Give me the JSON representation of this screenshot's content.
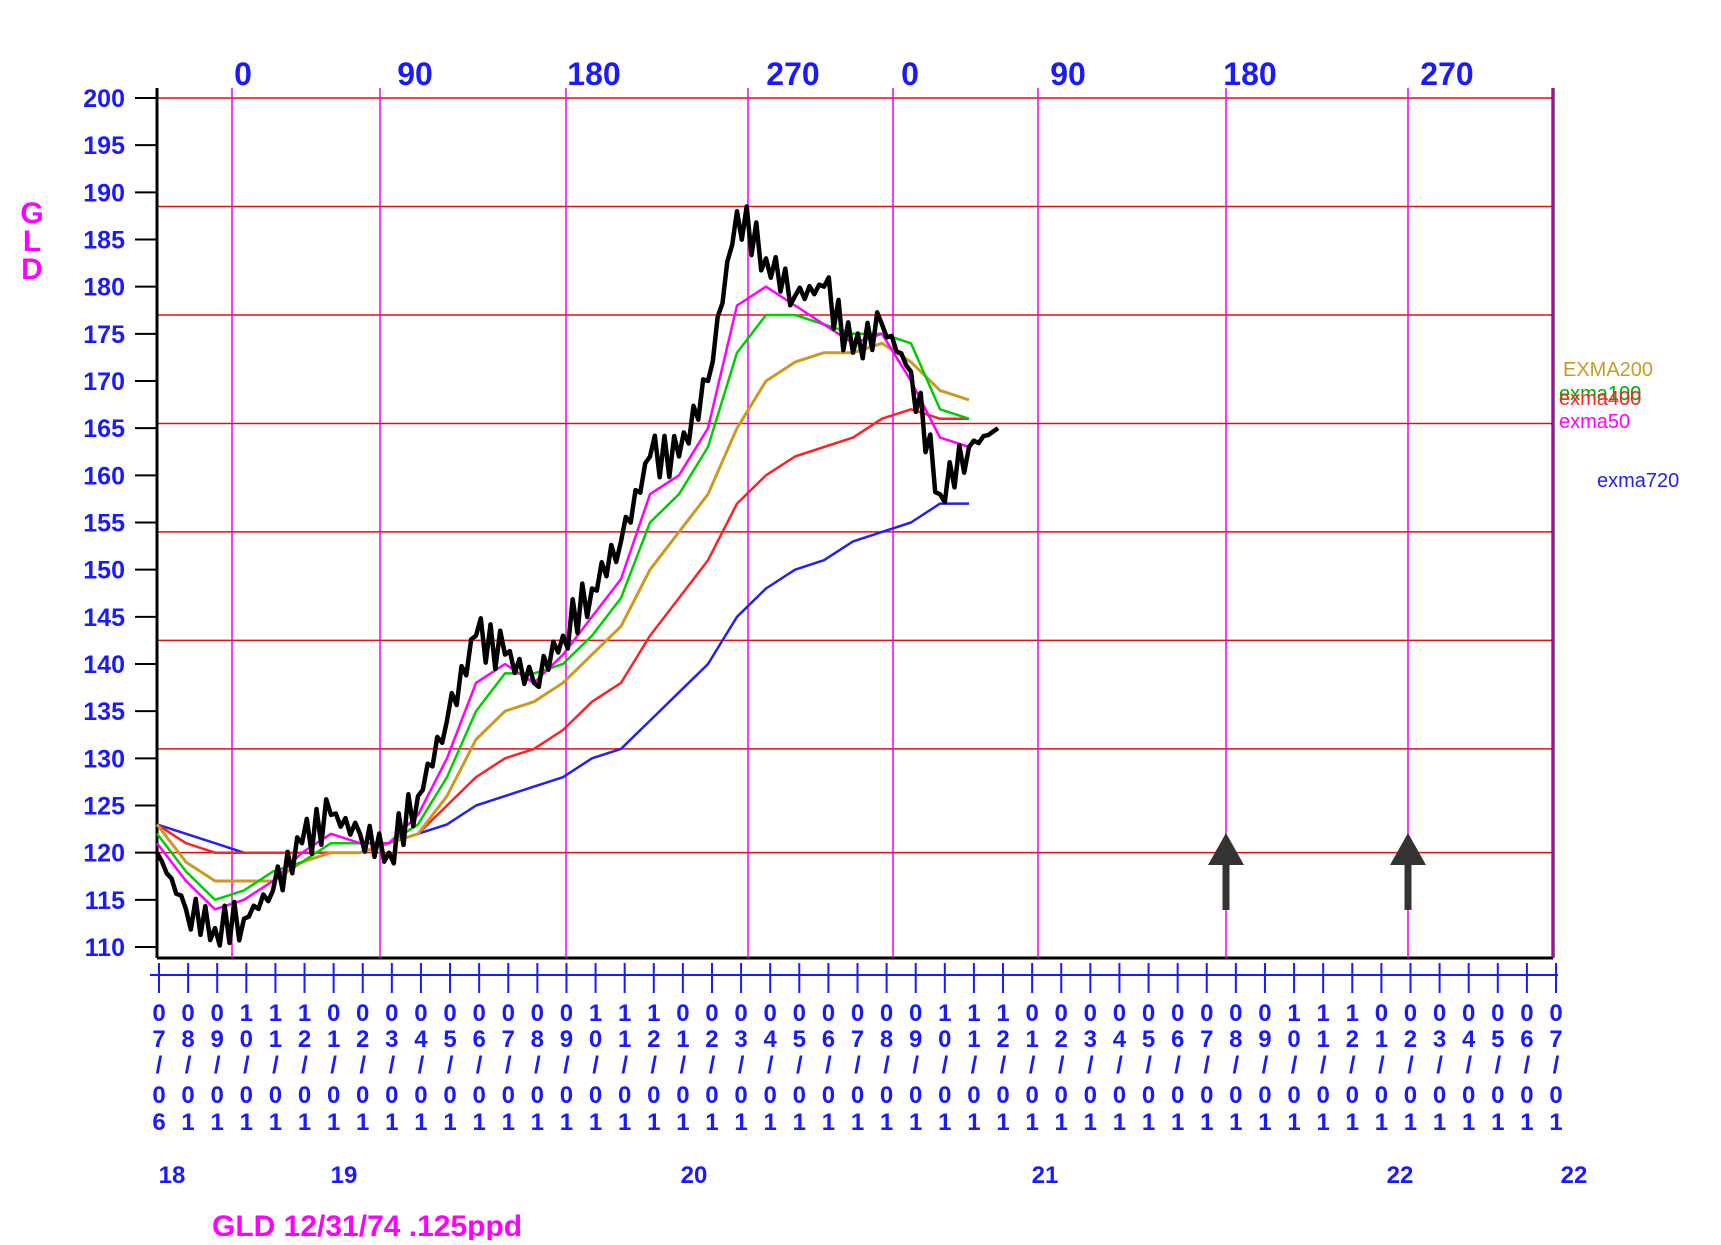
{
  "chart_data": {
    "type": "line",
    "y_axis_letters": [
      "G",
      "L",
      "D"
    ],
    "footer": "GLD 12/31/74  .125ppd",
    "ylim": [
      110,
      200
    ],
    "y_ticks": [
      "200",
      "195",
      "190",
      "185",
      "180",
      "175",
      "170",
      "165",
      "160",
      "155",
      "150",
      "145",
      "140",
      "135",
      "130",
      "125",
      "120",
      "115",
      "110"
    ],
    "degree_labels": [
      "0",
      "90",
      "180",
      "270",
      "0",
      "90",
      "180",
      "270"
    ],
    "x_month_ticks": [
      [
        "0",
        "7",
        "/",
        "0",
        "6"
      ],
      [
        "0",
        "8",
        "/",
        "0",
        "1"
      ],
      [
        "0",
        "9",
        "/",
        "0",
        "1"
      ],
      [
        "1",
        "0",
        "/",
        "0",
        "1"
      ],
      [
        "1",
        "1",
        "/",
        "0",
        "1"
      ],
      [
        "1",
        "2",
        "/",
        "0",
        "1"
      ],
      [
        "0",
        "1",
        "/",
        "0",
        "1"
      ],
      [
        "0",
        "2",
        "/",
        "0",
        "1"
      ],
      [
        "0",
        "3",
        "/",
        "0",
        "1"
      ],
      [
        "0",
        "4",
        "/",
        "0",
        "1"
      ],
      [
        "0",
        "5",
        "/",
        "0",
        "1"
      ],
      [
        "0",
        "6",
        "/",
        "0",
        "1"
      ],
      [
        "0",
        "7",
        "/",
        "0",
        "1"
      ],
      [
        "0",
        "8",
        "/",
        "0",
        "1"
      ],
      [
        "0",
        "9",
        "/",
        "0",
        "1"
      ],
      [
        "1",
        "0",
        "/",
        "0",
        "1"
      ],
      [
        "1",
        "1",
        "/",
        "0",
        "1"
      ],
      [
        "1",
        "2",
        "/",
        "0",
        "1"
      ],
      [
        "0",
        "1",
        "/",
        "0",
        "1"
      ],
      [
        "0",
        "2",
        "/",
        "0",
        "1"
      ],
      [
        "0",
        "3",
        "/",
        "0",
        "1"
      ],
      [
        "0",
        "4",
        "/",
        "0",
        "1"
      ],
      [
        "0",
        "5",
        "/",
        "0",
        "1"
      ],
      [
        "0",
        "6",
        "/",
        "0",
        "1"
      ],
      [
        "0",
        "7",
        "/",
        "0",
        "1"
      ],
      [
        "0",
        "8",
        "/",
        "0",
        "1"
      ],
      [
        "0",
        "9",
        "/",
        "0",
        "1"
      ],
      [
        "1",
        "0",
        "/",
        "0",
        "1"
      ],
      [
        "1",
        "1",
        "/",
        "0",
        "1"
      ],
      [
        "1",
        "2",
        "/",
        "0",
        "1"
      ],
      [
        "0",
        "1",
        "/",
        "0",
        "1"
      ],
      [
        "0",
        "2",
        "/",
        "0",
        "1"
      ],
      [
        "0",
        "3",
        "/",
        "0",
        "1"
      ],
      [
        "0",
        "4",
        "/",
        "0",
        "1"
      ],
      [
        "0",
        "5",
        "/",
        "0",
        "1"
      ],
      [
        "0",
        "6",
        "/",
        "0",
        "1"
      ],
      [
        "0",
        "7",
        "/",
        "0",
        "1"
      ],
      [
        "0",
        "8",
        "/",
        "0",
        "1"
      ],
      [
        "0",
        "9",
        "/",
        "0",
        "1"
      ],
      [
        "1",
        "0",
        "/",
        "0",
        "1"
      ],
      [
        "1",
        "1",
        "/",
        "0",
        "1"
      ],
      [
        "1",
        "2",
        "/",
        "0",
        "1"
      ],
      [
        "0",
        "1",
        "/",
        "0",
        "1"
      ],
      [
        "0",
        "2",
        "/",
        "0",
        "1"
      ],
      [
        "0",
        "3",
        "/",
        "0",
        "1"
      ],
      [
        "0",
        "4",
        "/",
        "0",
        "1"
      ],
      [
        "0",
        "5",
        "/",
        "0",
        "1"
      ],
      [
        "0",
        "6",
        "/",
        "0",
        "1"
      ],
      [
        "0",
        "7",
        "/",
        "0",
        "1"
      ]
    ],
    "year_labels": [
      "18",
      "19",
      "20",
      "21",
      "22",
      "22"
    ],
    "legend": [
      "EXMA200",
      "exma100",
      "exma400",
      "exma50",
      "exma720"
    ],
    "horizontal_levels": [
      200,
      188.5,
      177,
      165.5,
      154,
      142.5,
      131,
      120
    ],
    "arrows_at_months": [
      25,
      31.3
    ],
    "x": [
      0,
      1,
      2,
      3,
      4,
      5,
      6,
      7,
      8,
      9,
      10,
      11,
      12,
      13,
      14,
      15,
      16,
      17,
      18,
      19,
      20,
      21,
      22,
      23,
      24,
      25,
      26,
      27,
      28,
      29,
      30,
      31,
      32,
      33,
      34
    ],
    "series": [
      {
        "name": "GLD",
        "color": "#000000",
        "values": [
          120,
          114,
          112,
          113,
          116,
          121,
          124,
          122,
          120,
          126,
          134,
          143,
          141,
          138,
          143,
          148,
          153,
          162,
          162,
          170,
          188,
          183,
          179,
          180,
          173,
          176,
          171,
          158,
          163,
          165,
          null,
          null,
          null,
          null,
          null
        ]
      },
      {
        "name": "exma50",
        "color": "#ff00ff",
        "values": [
          121,
          117,
          114,
          115,
          117,
          120,
          122,
          121,
          121,
          124,
          130,
          138,
          140,
          138,
          141,
          145,
          149,
          158,
          160,
          165,
          178,
          180,
          178,
          176,
          174,
          175,
          170,
          164,
          163,
          null,
          null,
          null,
          null,
          null,
          null
        ]
      },
      {
        "name": "exma100",
        "color": "#00cc00",
        "values": [
          122,
          118,
          115,
          116,
          118,
          119,
          121,
          121,
          121,
          123,
          128,
          135,
          139,
          139,
          140,
          143,
          147,
          155,
          158,
          163,
          173,
          177,
          177,
          176,
          175,
          175,
          174,
          167,
          166,
          null,
          null,
          null,
          null,
          null,
          null
        ]
      },
      {
        "name": "EXMA200",
        "color": "#cc9922",
        "values": [
          123,
          119,
          117,
          117,
          117,
          119,
          120,
          120,
          121,
          122,
          126,
          132,
          135,
          136,
          138,
          141,
          144,
          150,
          154,
          158,
          165,
          170,
          172,
          173,
          173,
          174,
          172,
          169,
          168,
          null,
          null,
          null,
          null,
          null,
          null
        ]
      },
      {
        "name": "exma400",
        "color": "#ff2222",
        "values": [
          123,
          121,
          120,
          120,
          120,
          120,
          120,
          120,
          121,
          122,
          125,
          128,
          130,
          131,
          133,
          136,
          138,
          143,
          147,
          151,
          157,
          160,
          162,
          163,
          164,
          166,
          167,
          166,
          166,
          null,
          null,
          null,
          null,
          null,
          null
        ]
      },
      {
        "name": "exma720",
        "color": "#2222ee",
        "values": [
          123,
          122,
          121,
          120,
          120,
          120,
          120,
          120,
          121,
          122,
          123,
          125,
          126,
          127,
          128,
          130,
          131,
          134,
          137,
          140,
          145,
          148,
          150,
          151,
          153,
          154,
          155,
          157,
          157,
          null,
          null,
          null,
          null,
          null,
          null
        ]
      }
    ]
  }
}
